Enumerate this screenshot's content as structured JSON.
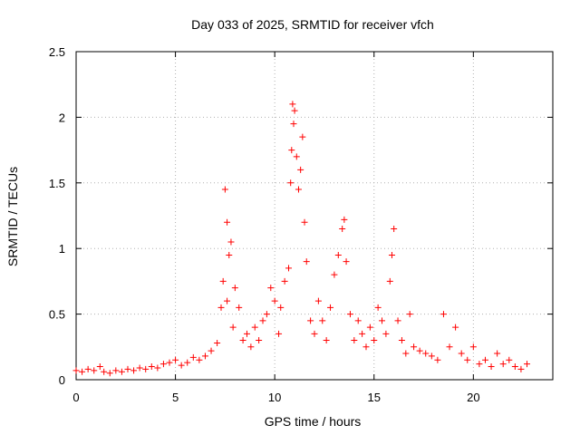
{
  "chart_data": {
    "type": "scatter",
    "title": "Day 033 of 2025, SRMTID for receiver vfch",
    "xlabel": "GPS time / hours",
    "ylabel": "SRMTID / TECUs",
    "xlim": [
      0,
      24
    ],
    "ylim": [
      0,
      2.5
    ],
    "xticks": [
      0,
      5,
      10,
      15,
      20
    ],
    "xtick_labels": [
      "0",
      "5",
      "10",
      "15",
      "20"
    ],
    "yticks": [
      0,
      0.5,
      1,
      1.5,
      2,
      2.5
    ],
    "ytick_labels": [
      "0",
      "0.5",
      "1",
      "1.5",
      "2",
      "2.5"
    ],
    "grid": true,
    "marker": "plus",
    "color": "#ff0000",
    "series": [
      {
        "name": "vfch",
        "x": [
          0.0,
          0.3,
          0.6,
          0.9,
          1.2,
          1.4,
          1.7,
          2.0,
          2.3,
          2.6,
          2.9,
          3.2,
          3.5,
          3.8,
          4.1,
          4.4,
          4.7,
          5.0,
          5.3,
          5.6,
          5.9,
          6.2,
          6.5,
          6.8,
          7.1,
          7.3,
          7.4,
          7.5,
          7.6,
          7.6,
          7.7,
          7.8,
          7.9,
          8.0,
          8.2,
          8.4,
          8.6,
          8.8,
          9.0,
          9.2,
          9.4,
          9.6,
          9.8,
          10.0,
          10.2,
          10.3,
          10.5,
          10.7,
          10.8,
          10.85,
          10.9,
          10.95,
          11.0,
          11.1,
          11.2,
          11.3,
          11.4,
          11.5,
          11.6,
          11.8,
          12.0,
          12.2,
          12.4,
          12.6,
          12.8,
          13.0,
          13.2,
          13.4,
          13.5,
          13.6,
          13.8,
          14.0,
          14.2,
          14.4,
          14.6,
          14.8,
          15.0,
          15.2,
          15.4,
          15.6,
          15.8,
          15.9,
          16.0,
          16.2,
          16.4,
          16.6,
          16.8,
          17.0,
          17.3,
          17.6,
          17.9,
          18.2,
          18.5,
          18.8,
          19.1,
          19.4,
          19.7,
          20.0,
          20.3,
          20.6,
          20.9,
          21.2,
          21.5,
          21.8,
          22.1,
          22.4,
          22.7
        ],
        "y": [
          0.07,
          0.06,
          0.08,
          0.07,
          0.1,
          0.06,
          0.05,
          0.07,
          0.06,
          0.08,
          0.07,
          0.09,
          0.08,
          0.1,
          0.09,
          0.12,
          0.13,
          0.15,
          0.11,
          0.13,
          0.17,
          0.15,
          0.18,
          0.22,
          0.28,
          0.55,
          0.75,
          1.45,
          1.2,
          0.6,
          0.95,
          1.05,
          0.4,
          0.7,
          0.55,
          0.3,
          0.35,
          0.25,
          0.4,
          0.3,
          0.45,
          0.5,
          0.7,
          0.6,
          0.35,
          0.55,
          0.75,
          0.85,
          1.5,
          1.75,
          2.1,
          1.95,
          2.05,
          1.7,
          1.45,
          1.6,
          1.85,
          1.2,
          0.9,
          0.45,
          0.35,
          0.6,
          0.45,
          0.3,
          0.55,
          0.8,
          0.95,
          1.15,
          1.22,
          0.9,
          0.5,
          0.3,
          0.45,
          0.35,
          0.25,
          0.4,
          0.3,
          0.55,
          0.45,
          0.35,
          0.75,
          0.95,
          1.15,
          0.45,
          0.3,
          0.2,
          0.5,
          0.25,
          0.22,
          0.2,
          0.18,
          0.15,
          0.5,
          0.25,
          0.4,
          0.2,
          0.15,
          0.25,
          0.12,
          0.15,
          0.1,
          0.2,
          0.12,
          0.15,
          0.1,
          0.08,
          0.12
        ]
      }
    ]
  }
}
